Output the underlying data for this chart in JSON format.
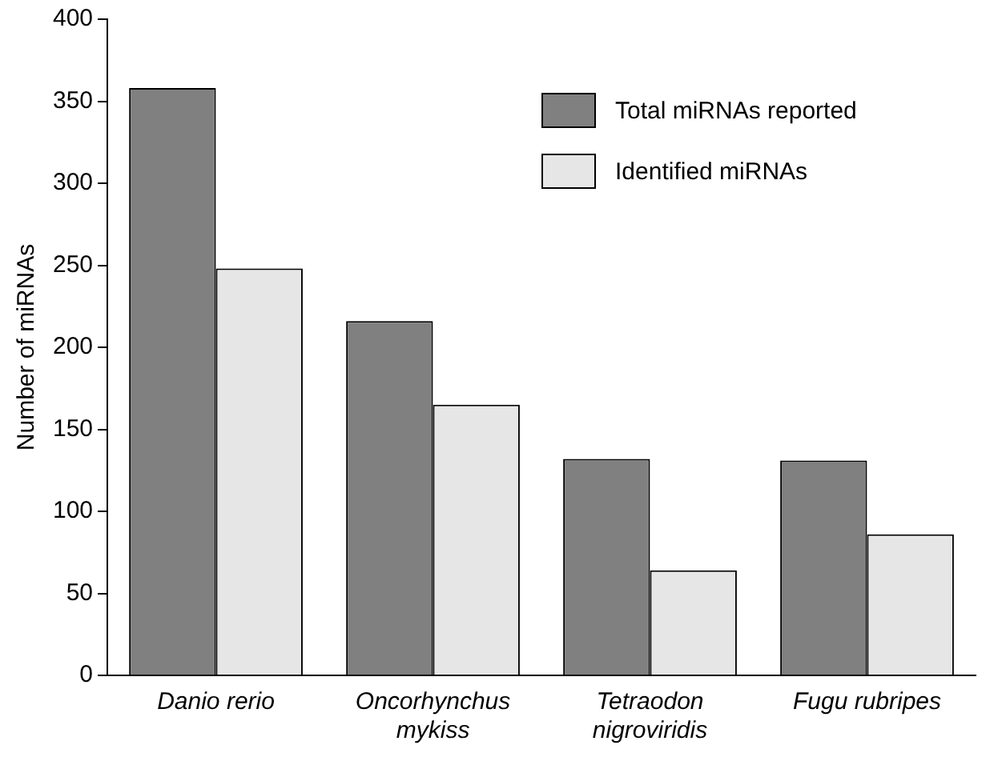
{
  "chart_data": {
    "type": "bar",
    "ylabel": "Number of miRNAs",
    "categories": [
      "Danio rerio",
      "Oncorhynchus mykiss",
      "Tetraodon nigroviridis",
      "Fugu rubripes"
    ],
    "series": [
      {
        "name": "Total miRNAs reported",
        "color": "#808080",
        "values": [
          358,
          216,
          132,
          131
        ]
      },
      {
        "name": "Identified miRNAs",
        "color": "#e6e6e6",
        "values": [
          248,
          165,
          64,
          86
        ]
      }
    ],
    "ylim": [
      0,
      400
    ],
    "yticks": [
      0,
      50,
      100,
      150,
      200,
      250,
      300,
      350,
      400
    ],
    "grid": false,
    "legend": "top right"
  }
}
